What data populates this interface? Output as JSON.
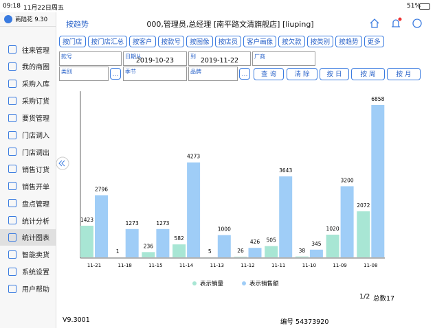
{
  "status_bar": {
    "time": "09:18",
    "date": "11月22日周五",
    "battery": "51%"
  },
  "sidebar": {
    "user": "商陆花 9.30",
    "items": [
      {
        "label": "往来管理"
      },
      {
        "label": "我的商圈"
      },
      {
        "label": "采购入库"
      },
      {
        "label": "采购订货"
      },
      {
        "label": "要货管理"
      },
      {
        "label": "门店调入"
      },
      {
        "label": "门店调出"
      },
      {
        "label": "销售订货"
      },
      {
        "label": "销售开单"
      },
      {
        "label": "盘点管理"
      },
      {
        "label": "统计分析"
      },
      {
        "label": "统计图表",
        "active": true
      },
      {
        "label": "智能卖货"
      },
      {
        "label": "系统设置"
      },
      {
        "label": "用户帮助"
      }
    ]
  },
  "header": {
    "back": "按趋势",
    "title": "000,管理员,总经理 [南平路文清旗舰店] [liuping]"
  },
  "tabs": [
    "按门店",
    "按门店汇总",
    "按客户",
    "按款号",
    "按图像",
    "按店员",
    "客户画像",
    "按欠款",
    "按类别",
    "按趋势",
    "更多"
  ],
  "filters": {
    "row1": [
      {
        "label": "款号"
      },
      {
        "label": "日期从",
        "value": "2019-10-23"
      },
      {
        "label": "到",
        "value": "2019-11-22"
      },
      {
        "label": "厂商"
      }
    ],
    "row2": [
      {
        "label": "类别"
      },
      {
        "label": "季节"
      },
      {
        "label": "品牌"
      }
    ],
    "picker": "...",
    "actions": [
      "查 询",
      "清 除",
      "按 日",
      "按 周",
      "按 月"
    ]
  },
  "chart_data": {
    "type": "bar",
    "categories": [
      "11-21",
      "11-18",
      "11-15",
      "11-14",
      "11-13",
      "11-12",
      "11-11",
      "11-10",
      "11-09",
      "11-08"
    ],
    "series": [
      {
        "name": "表示销量",
        "color": "#a8e6d4",
        "values": [
          1423,
          1,
          236,
          582,
          5,
          26,
          505,
          38,
          1020,
          2072
        ]
      },
      {
        "name": "表示销售额",
        "color": "#9fcdf7",
        "values": [
          2796,
          1273,
          1273,
          4273,
          1000,
          426,
          3643,
          345,
          3200,
          6858
        ]
      }
    ]
  },
  "pager": {
    "page": "1/2",
    "total": "总数17"
  },
  "footer": {
    "version": "V9.3001",
    "serial": "编号 54373920"
  }
}
